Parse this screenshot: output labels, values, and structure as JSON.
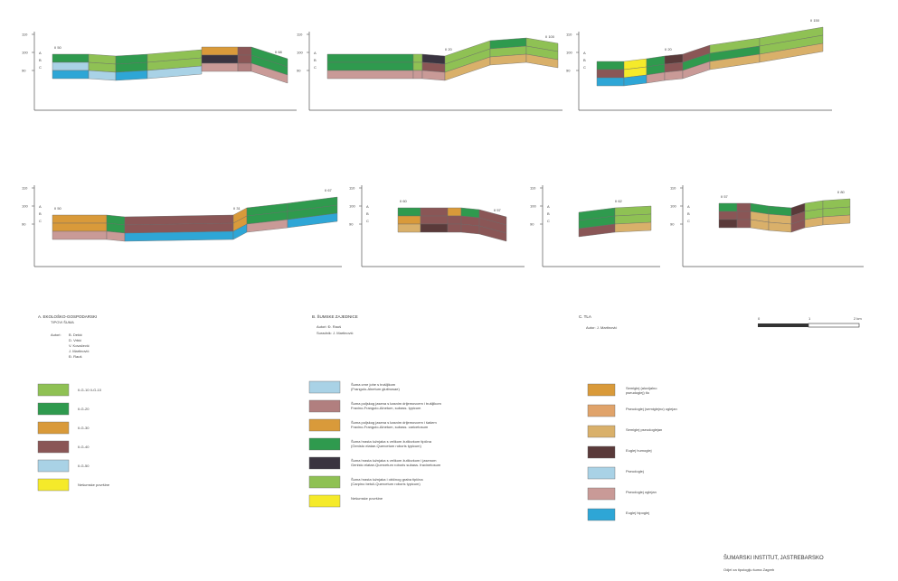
{
  "colors": {
    "light_green": "#8fc154",
    "green": "#2f9a4e",
    "dark_green": "#237a3c",
    "olive": "#b9c86a",
    "brown": "#8a5656",
    "mauve": "#b17f7f",
    "pink": "#c99a97",
    "orange": "#d99a3a",
    "tan": "#d9b06a",
    "peach": "#e0a36a",
    "blue": "#2ea6d6",
    "light_blue": "#a9d2e6",
    "yellow": "#f5ea2a",
    "dark": "#3a3440",
    "dark_brown": "#5a3a3a"
  },
  "profiles": [
    {
      "ticks": [
        "110",
        "100",
        "90"
      ],
      "left_label": "II 50",
      "right_label": "II 68",
      "letters": [
        "A",
        "B",
        "C"
      ]
    },
    {
      "ticks": [
        "110",
        "100",
        "90"
      ],
      "left_label": "",
      "mid_label": "II 20",
      "right_label": "II 100",
      "letters": [
        "A",
        "B",
        "C"
      ]
    },
    {
      "ticks": [
        "110",
        "100",
        "90"
      ],
      "left_label": "",
      "mid_label": "II 20",
      "right_label": "II 150",
      "letters": [
        "A",
        "B",
        "C"
      ]
    },
    {
      "ticks": [
        "110",
        "100",
        "90"
      ],
      "left_label": "II 50",
      "mid_label": "II 31",
      "right_label": "II 67",
      "letters": [
        "A",
        "B",
        "C"
      ]
    },
    {
      "ticks": [
        "110",
        "100",
        "90"
      ],
      "left_label": "II 60",
      "right_label": "II 57",
      "letters": [
        "A",
        "B",
        "C"
      ]
    },
    {
      "ticks": [
        "110",
        "100",
        "90"
      ],
      "left_label": "",
      "mid_label": "II 62",
      "right_label": "",
      "letters": [
        "A",
        "B",
        "C"
      ]
    },
    {
      "ticks": [
        "110",
        "100",
        "90"
      ],
      "left_label": "II 57",
      "right_label": "II 80",
      "letters": [
        "A",
        "B",
        "C"
      ]
    }
  ],
  "legend_a": {
    "heading": "A. EKOLOŠKO-GOSPODARSKI",
    "subheading": "TIPOVI ŠUMA",
    "author_label": "Autori:",
    "authors": [
      "B. Dekić",
      "D. Vrbić",
      "V. Kovačević",
      "J. Martinović",
      "Đ. Rauš"
    ],
    "items": [
      {
        "color_key": "light_green",
        "label": "II-G-10 II-G-10"
      },
      {
        "color_key": "green",
        "label": "II-G-20"
      },
      {
        "color_key": "orange",
        "label": "II-G-30"
      },
      {
        "color_key": "brown",
        "label": "II-G-40"
      },
      {
        "color_key": "light_blue",
        "label": "II-G-50"
      },
      {
        "color_key": "yellow",
        "label": "Nešumske površine"
      }
    ]
  },
  "legend_b": {
    "heading": "B. ŠUMSKE ZAJEDNICE",
    "lines": [
      "Autori: Đ. Rauš",
      "Suradnik: J. Martinović"
    ],
    "items": [
      {
        "color_key": "light_blue",
        "label": "Šuma crne johe s trušljikom",
        "sub": "(Frangulo-Alnetum glutinosae)"
      },
      {
        "color_key": "mauve",
        "label": "Šuma poljskog jasena s kasnim drijemovcem i trušljikom",
        "sub": "Fraxino-Frangulo-Alnetum, subass. typicum"
      },
      {
        "color_key": "orange",
        "label": "Šuma poljskog jasena s kasnim drijemovcem i šašem",
        "sub": "Fraxino-Frangulo-Alnetum, subass. caricetosum"
      },
      {
        "color_key": "green",
        "label": "Šuma hrasta lužnjaka s velikom žutilovkom tipična",
        "sub": "(Genisto elatae-Quercetum roboris typicum)"
      },
      {
        "color_key": "dark",
        "label": "Šuma hrasta lužnjaka s velikom žutilovkom i jasenom",
        "sub": "Genisto elatae-Quercetum roboris subass. fraxinetosum"
      },
      {
        "color_key": "light_green",
        "label": "Šuma hrasta lužnjaka i običnog graba tipična",
        "sub": "(Carpino betuli-Quercetum roboris typicum)"
      },
      {
        "color_key": "yellow",
        "label": "Nešumske površine",
        "sub": ""
      }
    ]
  },
  "legend_c": {
    "heading": "C. TLA",
    "lines": [
      "Autor: J. Martinović"
    ],
    "items": [
      {
        "color_key": "orange",
        "label": "Semiglej (aluvijalno",
        "sub": "pseudoglej) tlo"
      },
      {
        "color_key": "peach",
        "label": "Pseudoglej (semiglejno) oglejan",
        "sub": ""
      },
      {
        "color_key": "tan",
        "label": "Semiglej pseudoglejan",
        "sub": ""
      },
      {
        "color_key": "dark_brown",
        "label": "Euglej humoglej",
        "sub": ""
      },
      {
        "color_key": "light_blue",
        "label": "Pseudoglej",
        "sub": ""
      },
      {
        "color_key": "pink",
        "label": "Pseudoglej oglejan",
        "sub": ""
      },
      {
        "color_key": "blue",
        "label": "Euglej hipoglej",
        "sub": ""
      }
    ]
  },
  "scale": {
    "labels": [
      "0",
      "1",
      "2 km"
    ]
  },
  "footer": {
    "line1": "ŠUMARSKI INSTITUT, JASTREBARSKO",
    "line2": "Odjel za tipologiju šuma Zagreb"
  }
}
